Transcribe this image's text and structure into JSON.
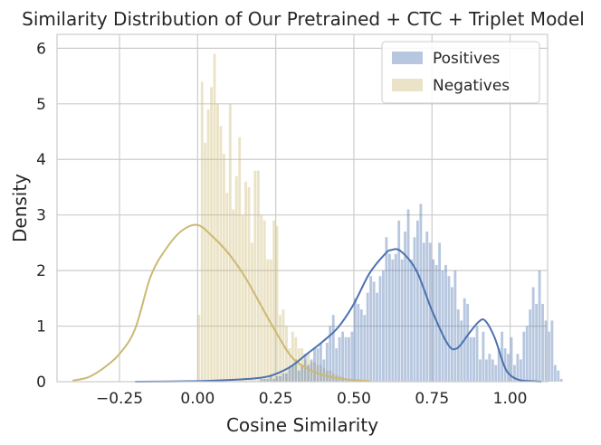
{
  "chart_data": {
    "type": "histogram",
    "title": "Similarity Distribution of Our Pretrained + CTC + Triplet Model",
    "xlabel": "Cosine Similarity",
    "ylabel": "Density",
    "xlim": [
      -0.45,
      1.12
    ],
    "ylim": [
      0,
      6.25
    ],
    "xticks": [
      -0.25,
      0.0,
      0.25,
      0.5,
      0.75,
      1.0
    ],
    "xtick_labels": [
      "−0.25",
      "0.00",
      "0.25",
      "0.50",
      "0.75",
      "1.00"
    ],
    "yticks": [
      0,
      1,
      2,
      3,
      4,
      5,
      6
    ],
    "ytick_labels": [
      "0",
      "1",
      "2",
      "3",
      "4",
      "5",
      "6"
    ],
    "grid": true,
    "legend_position": "top-right",
    "bin_width": 0.01,
    "series": [
      {
        "name": "Negatives",
        "color": "#ccb974",
        "bar_opacity": 0.4,
        "bins_start": 0.0,
        "values": [
          1.2,
          5.4,
          4.3,
          4.9,
          5.3,
          5.9,
          5.0,
          4.6,
          4.1,
          3.4,
          5.0,
          3.1,
          3.7,
          4.4,
          3.0,
          3.6,
          3.5,
          2.5,
          3.8,
          3.8,
          3.0,
          2.9,
          2.2,
          2.2,
          2.9,
          2.8,
          1.2,
          1.3,
          1.0,
          0.6,
          0.9,
          0.8,
          0.6,
          0.6,
          0.4,
          0.5,
          0.35,
          0.35,
          0.3,
          0.3,
          0.25,
          0.2,
          0.2,
          0.15,
          0.12,
          0.1,
          0.08,
          0.06,
          0.04,
          0.03,
          0.02,
          0.02,
          0.01,
          0.01,
          0.01
        ],
        "kde": {
          "x": [
            -0.4,
            -0.35,
            -0.3,
            -0.25,
            -0.2,
            -0.15,
            -0.1,
            -0.05,
            0.0,
            0.05,
            0.1,
            0.15,
            0.2,
            0.25,
            0.3,
            0.35,
            0.4,
            0.45,
            0.5,
            0.55
          ],
          "y": [
            0.02,
            0.08,
            0.25,
            0.5,
            0.95,
            1.9,
            2.4,
            2.72,
            2.82,
            2.6,
            2.3,
            1.9,
            1.4,
            0.9,
            0.45,
            0.24,
            0.12,
            0.06,
            0.03,
            0.01
          ]
        }
      },
      {
        "name": "Positives",
        "color": "#4c72b0",
        "bar_opacity": 0.4,
        "bins_start": 0.2,
        "values": [
          0.05,
          0.05,
          0.05,
          0.1,
          0.05,
          0.1,
          0.1,
          0.15,
          0.15,
          0.25,
          0.3,
          0.4,
          0.2,
          0.3,
          0.5,
          0.3,
          0.4,
          0.6,
          0.6,
          0.7,
          0.4,
          0.7,
          1.0,
          1.2,
          0.6,
          0.8,
          0.9,
          0.8,
          0.8,
          0.9,
          1.5,
          1.4,
          1.3,
          1.2,
          1.6,
          1.9,
          1.8,
          1.6,
          1.9,
          2.0,
          2.6,
          2.3,
          2.2,
          2.3,
          2.9,
          2.2,
          2.7,
          3.1,
          2.2,
          2.6,
          2.9,
          3.2,
          2.5,
          2.7,
          2.5,
          2.2,
          2.1,
          2.5,
          2.0,
          2.1,
          1.9,
          1.7,
          2.0,
          1.3,
          1.1,
          1.5,
          1.4,
          0.8,
          0.8,
          1.0,
          0.4,
          0.9,
          0.4,
          0.5,
          0.4,
          0.3,
          0.6,
          0.9,
          0.6,
          0.5,
          0.8,
          0.3,
          0.5,
          0.4,
          0.9,
          1.0,
          1.3,
          1.7,
          1.4,
          2.0,
          1.4,
          1.1,
          0.9,
          1.1,
          0.3,
          0.2,
          0.05
        ],
        "kde": {
          "x": [
            -0.2,
            0.0,
            0.1,
            0.2,
            0.25,
            0.3,
            0.35,
            0.4,
            0.45,
            0.5,
            0.55,
            0.6,
            0.62,
            0.65,
            0.7,
            0.75,
            0.8,
            0.83,
            0.87,
            0.9,
            0.92,
            0.95,
            0.98,
            1.0,
            1.03,
            1.07,
            1.1
          ],
          "y": [
            0.0,
            0.01,
            0.03,
            0.07,
            0.14,
            0.28,
            0.5,
            0.72,
            0.98,
            1.4,
            1.95,
            2.3,
            2.37,
            2.35,
            2.0,
            1.28,
            0.68,
            0.6,
            0.88,
            1.08,
            1.1,
            0.8,
            0.3,
            0.12,
            0.03,
            0.01,
            0.0
          ]
        }
      }
    ],
    "legend_order": [
      "Positives",
      "Negatives"
    ]
  }
}
